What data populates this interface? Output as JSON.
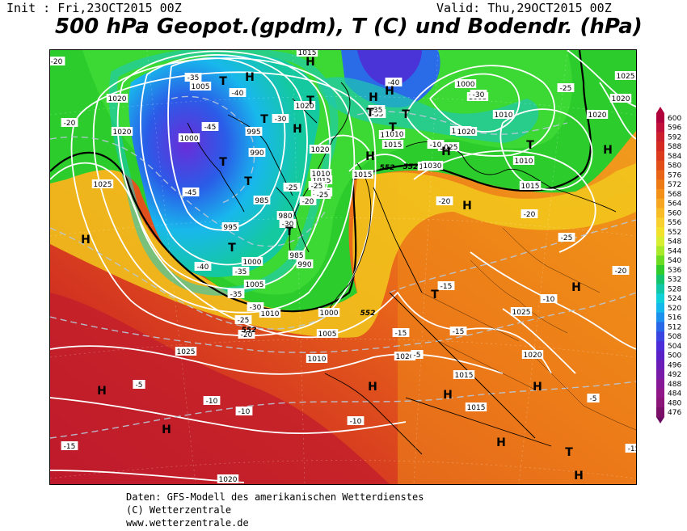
{
  "header": {
    "init": "Init : Fri,23OCT2015 00Z",
    "valid": "Valid: Thu,29OCT2015 00Z",
    "title": "500 hPa Geopot.(gpdm), T (C) und Bodendr. (hPa)"
  },
  "legend": {
    "values": [
      "600",
      "596",
      "592",
      "588",
      "584",
      "580",
      "576",
      "572",
      "568",
      "564",
      "560",
      "556",
      "552",
      "548",
      "544",
      "540",
      "536",
      "532",
      "528",
      "524",
      "520",
      "516",
      "512",
      "508",
      "504",
      "500",
      "496",
      "492",
      "488",
      "484",
      "480",
      "476"
    ],
    "colors": [
      "#b0003c",
      "#c0103a",
      "#cc1f2e",
      "#d42a22",
      "#dc3a1c",
      "#e24e18",
      "#e86416",
      "#ee7a16",
      "#f29018",
      "#f6a620",
      "#f8bc26",
      "#f8d030",
      "#f2e22c",
      "#d8ee30",
      "#a8ea2a",
      "#6cdc22",
      "#30cc2c",
      "#14c46c",
      "#10c8a8",
      "#10d0d8",
      "#14b8ec",
      "#1c90ec",
      "#2868e8",
      "#3a44e0",
      "#4a2cd8",
      "#5a20c8",
      "#6a1cb8",
      "#781aa8",
      "#861898",
      "#901688",
      "#8a1478",
      "#7a1068"
    ]
  },
  "isobar_labels": [
    "1015",
    "1005",
    "1020",
    "1020",
    "995",
    "1000",
    "990",
    "985",
    "995",
    "980",
    "985",
    "990",
    "1000",
    "1005",
    "1010",
    "1000",
    "1005",
    "1010",
    "1015",
    "1020",
    "1015",
    "1015",
    "1010",
    "1010",
    "1020",
    "1010",
    "1015",
    "1010",
    "1000",
    "1005",
    "1010",
    "1020",
    "1025",
    "1025",
    "1030",
    "1015",
    "1025",
    "1020",
    "1025",
    "1020",
    "1015",
    "1015",
    "1020",
    "1025",
    "1020",
    "1020",
    "1025",
    "1020"
  ],
  "temp_labels": [
    "-20",
    "-35",
    "-40",
    "-45",
    "-45",
    "-40",
    "-35",
    "-35",
    "-30",
    "-25",
    "-20",
    "-25",
    "-30",
    "-35",
    "-40",
    "-35",
    "-30",
    "-25",
    "-20",
    "-20",
    "-25",
    "-30",
    "-25",
    "-20",
    "-20",
    "-15",
    "-15",
    "-15",
    "-10",
    "-10",
    "-10",
    "-10",
    "-5",
    "-5",
    "-15",
    "-15",
    "-20",
    "-25",
    "-10",
    "-5"
  ],
  "geopot_labels": [
    "552",
    "552",
    "552",
    "552"
  ],
  "pressure_centers": [
    "H",
    "H",
    "H",
    "H",
    "H",
    "H",
    "H",
    "H",
    "H",
    "H",
    "H",
    "H",
    "H",
    "H",
    "H",
    "H",
    "H",
    "H",
    "T",
    "T",
    "T",
    "T",
    "T",
    "T",
    "T",
    "T",
    "T",
    "T",
    "T",
    "T",
    "T"
  ],
  "footer": {
    "line1": "Daten: GFS-Modell des amerikanischen Wetterdienstes",
    "line2": "(C) Wetterzentrale",
    "line3": "www.wetterzentrale.de"
  }
}
